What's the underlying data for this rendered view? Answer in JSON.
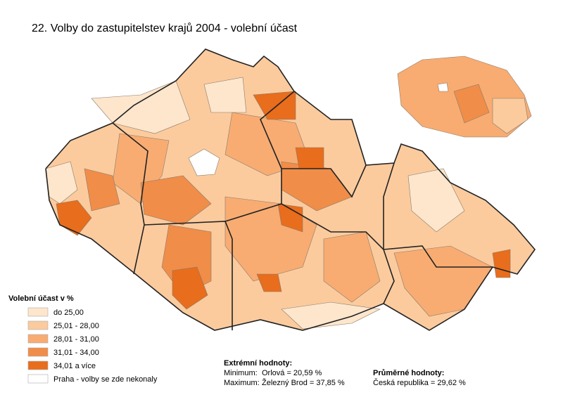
{
  "title": "22. Volby do zastupitelstev krajů 2004 - volební účast",
  "legend": {
    "title": "Volební účast v %",
    "items": [
      {
        "label": "do 25,00",
        "color": "#fde6cc"
      },
      {
        "label": "25,01 - 28,00",
        "color": "#fbcb9e"
      },
      {
        "label": "28,01 - 31,00",
        "color": "#f8ac72"
      },
      {
        "label": "31,01 - 34,00",
        "color": "#f08d49"
      },
      {
        "label": "34,01 a více",
        "color": "#e86d1c"
      },
      {
        "label": "Praha - volby se zde nekonaly",
        "color": "#ffffff"
      }
    ]
  },
  "extremes": {
    "title": "Extrémní hodnoty:",
    "rows": [
      {
        "label": "Minimum:",
        "value": "Orlová = 20,59 %"
      },
      {
        "label": "Maximum:",
        "value": "Železný Brod = 37,85 %"
      }
    ]
  },
  "averages": {
    "title": "Průměrné hodnoty:",
    "rows": [
      "Česká republika = 29,62 %"
    ]
  }
}
